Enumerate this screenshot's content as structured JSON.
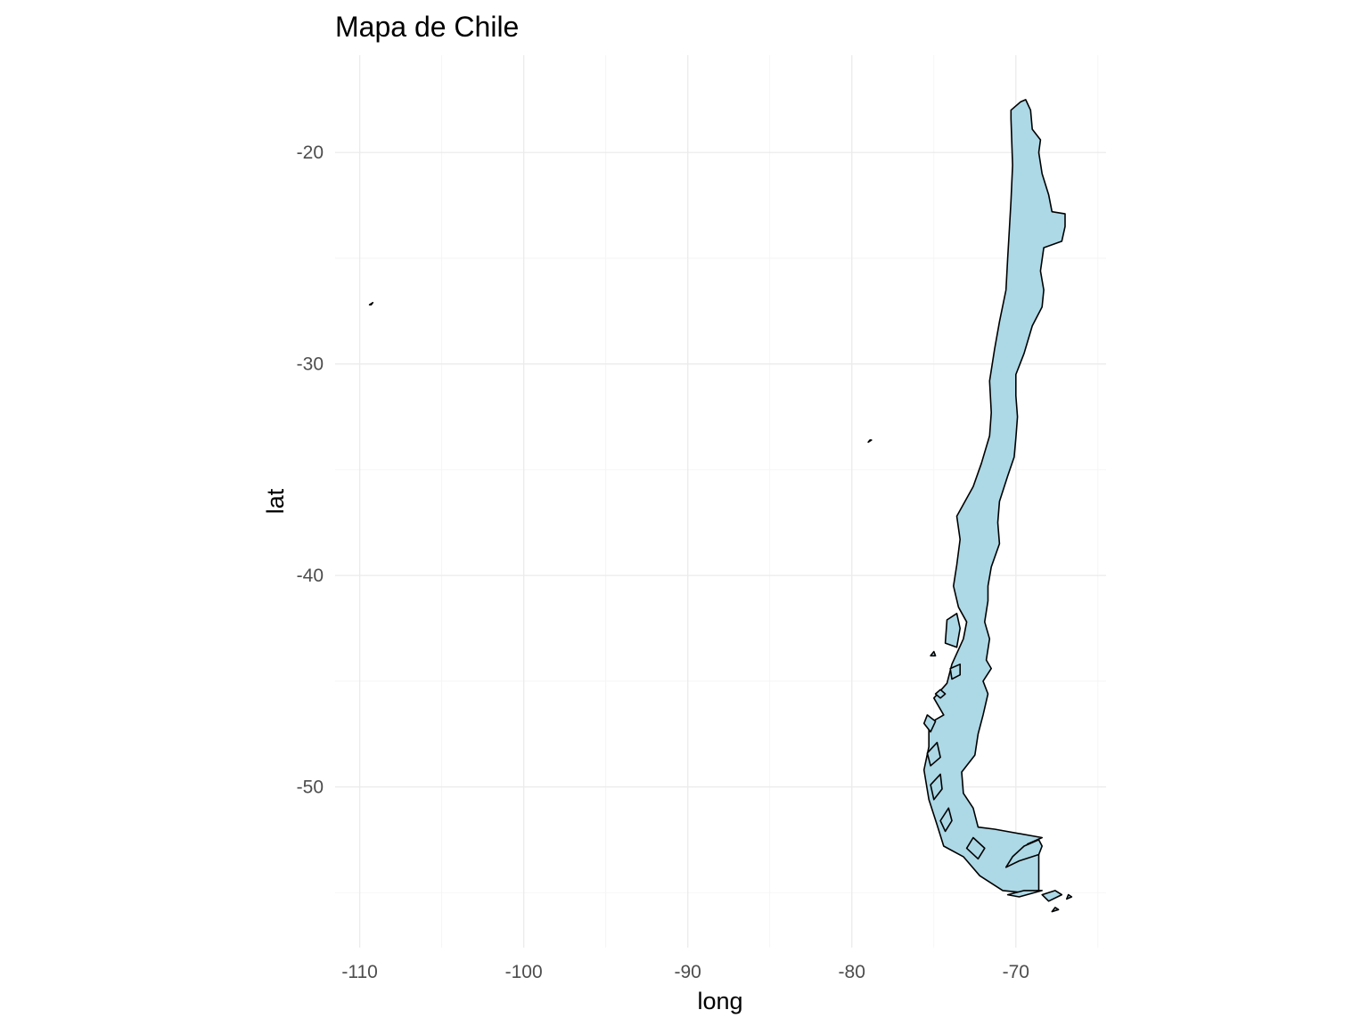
{
  "title": "Mapa de Chile",
  "chart_data": {
    "type": "map",
    "title": "Mapa de Chile",
    "xlabel": "long",
    "ylabel": "lat",
    "xlim": [
      -111.5,
      -64.5
    ],
    "ylim": [
      -57.6,
      -15.4
    ],
    "x_ticks": [
      -110,
      -100,
      -90,
      -80,
      -70
    ],
    "x_tick_labels": [
      "-110",
      "-100",
      "-90",
      "-80",
      "-70"
    ],
    "y_ticks": [
      -20,
      -30,
      -40,
      -50
    ],
    "y_tick_labels": [
      "-20",
      "-30",
      "-40",
      "-50"
    ],
    "x_minor": [
      -105,
      -95,
      -85,
      -75,
      -65
    ],
    "y_minor": [
      -25,
      -35,
      -45,
      -55
    ],
    "grid": true,
    "fill_color": "#add8e6",
    "outline_color": "#000000",
    "regions": [
      {
        "name": "",
        "polygon": [
          [
            -69.4,
            -17.5
          ],
          [
            -69.1,
            -18.0
          ],
          [
            -69.0,
            -18.9
          ],
          [
            -68.5,
            -19.4
          ],
          [
            -68.6,
            -20.0
          ],
          [
            -68.4,
            -21.0
          ],
          [
            -68.0,
            -22.0
          ],
          [
            -67.8,
            -22.8
          ],
          [
            -67.0,
            -22.9
          ],
          [
            -67.0,
            -23.5
          ],
          [
            -67.2,
            -24.2
          ],
          [
            -68.3,
            -24.5
          ],
          [
            -68.5,
            -25.6
          ],
          [
            -68.3,
            -26.5
          ],
          [
            -68.4,
            -27.3
          ],
          [
            -69.0,
            -28.2
          ],
          [
            -69.5,
            -29.5
          ],
          [
            -70.0,
            -30.5
          ],
          [
            -70.0,
            -31.5
          ],
          [
            -69.9,
            -32.5
          ],
          [
            -70.0,
            -33.5
          ],
          [
            -70.1,
            -34.4
          ],
          [
            -70.5,
            -35.3
          ],
          [
            -71.0,
            -36.5
          ],
          [
            -71.1,
            -37.5
          ],
          [
            -71.0,
            -38.5
          ],
          [
            -71.5,
            -39.6
          ],
          [
            -71.7,
            -40.5
          ],
          [
            -71.7,
            -41.2
          ],
          [
            -71.9,
            -42.2
          ],
          [
            -71.6,
            -43.0
          ],
          [
            -71.8,
            -44.0
          ],
          [
            -71.5,
            -44.4
          ],
          [
            -72.0,
            -45.0
          ],
          [
            -71.7,
            -45.6
          ],
          [
            -72.0,
            -46.6
          ],
          [
            -72.3,
            -47.5
          ],
          [
            -72.5,
            -48.5
          ],
          [
            -73.3,
            -49.3
          ],
          [
            -73.2,
            -50.3
          ],
          [
            -72.6,
            -51.0
          ],
          [
            -72.3,
            -51.9
          ],
          [
            -71.3,
            -52.0
          ],
          [
            -68.4,
            -52.4
          ],
          [
            -69.3,
            -52.7
          ],
          [
            -68.6,
            -53.2
          ],
          [
            -68.6,
            -54.9
          ],
          [
            -69.5,
            -55.0
          ],
          [
            -70.8,
            -54.9
          ],
          [
            -72.2,
            -54.2
          ],
          [
            -73.2,
            -53.3
          ],
          [
            -74.4,
            -52.8
          ],
          [
            -74.8,
            -51.8
          ],
          [
            -75.3,
            -50.6
          ],
          [
            -75.6,
            -49.2
          ],
          [
            -75.3,
            -48.1
          ],
          [
            -75.3,
            -47.0
          ],
          [
            -74.4,
            -46.6
          ],
          [
            -75.0,
            -45.8
          ],
          [
            -74.2,
            -45.1
          ],
          [
            -73.9,
            -44.2
          ],
          [
            -73.2,
            -43.0
          ],
          [
            -73.0,
            -42.2
          ],
          [
            -73.5,
            -41.5
          ],
          [
            -73.8,
            -40.5
          ],
          [
            -73.6,
            -39.5
          ],
          [
            -73.4,
            -38.3
          ],
          [
            -73.6,
            -37.2
          ],
          [
            -72.6,
            -35.8
          ],
          [
            -72.1,
            -34.7
          ],
          [
            -71.6,
            -33.4
          ],
          [
            -71.5,
            -32.3
          ],
          [
            -71.6,
            -30.8
          ],
          [
            -71.3,
            -29.3
          ],
          [
            -71.0,
            -28.0
          ],
          [
            -70.6,
            -26.5
          ],
          [
            -70.5,
            -25.0
          ],
          [
            -70.4,
            -23.7
          ],
          [
            -70.3,
            -22.3
          ],
          [
            -70.2,
            -20.6
          ],
          [
            -70.3,
            -18.4
          ],
          [
            -70.3,
            -18.0
          ],
          [
            -69.7,
            -17.6
          ]
        ]
      },
      {
        "name": "",
        "polygon": [
          [
            -68.6,
            -52.5
          ],
          [
            -68.4,
            -52.8
          ],
          [
            -68.6,
            -53.2
          ],
          [
            -69.8,
            -53.5
          ],
          [
            -70.6,
            -53.8
          ],
          [
            -70.2,
            -53.3
          ],
          [
            -69.5,
            -52.8
          ]
        ]
      },
      {
        "name": "",
        "polygon": [
          [
            -68.4,
            -54.9
          ],
          [
            -69.8,
            -55.2
          ],
          [
            -70.5,
            -55.1
          ],
          [
            -69.5,
            -54.9
          ]
        ]
      },
      {
        "name": "",
        "polygon": [
          [
            -67.2,
            -55.1
          ],
          [
            -68.0,
            -55.4
          ],
          [
            -68.4,
            -55.1
          ],
          [
            -67.6,
            -54.9
          ]
        ]
      },
      {
        "name": "",
        "polygon": [
          [
            -66.6,
            -55.2
          ],
          [
            -66.9,
            -55.3
          ],
          [
            -66.8,
            -55.1
          ]
        ]
      },
      {
        "name": "",
        "polygon": [
          [
            -67.4,
            -55.8
          ],
          [
            -67.8,
            -55.9
          ],
          [
            -67.6,
            -55.7
          ]
        ]
      },
      {
        "name": "",
        "polygon": [
          [
            -72.6,
            -52.4
          ],
          [
            -73.0,
            -52.9
          ],
          [
            -72.3,
            -53.4
          ],
          [
            -71.9,
            -52.9
          ]
        ]
      },
      {
        "name": "",
        "polygon": [
          [
            -74.1,
            -51.0
          ],
          [
            -74.6,
            -51.6
          ],
          [
            -74.3,
            -52.1
          ],
          [
            -73.9,
            -51.6
          ]
        ]
      },
      {
        "name": "",
        "polygon": [
          [
            -74.6,
            -49.4
          ],
          [
            -75.2,
            -49.9
          ],
          [
            -75.0,
            -50.6
          ],
          [
            -74.5,
            -50.1
          ]
        ]
      },
      {
        "name": "",
        "polygon": [
          [
            -74.8,
            -47.9
          ],
          [
            -75.4,
            -48.4
          ],
          [
            -75.2,
            -49.0
          ],
          [
            -74.6,
            -48.6
          ]
        ]
      },
      {
        "name": "",
        "polygon": [
          [
            -75.4,
            -46.6
          ],
          [
            -75.6,
            -47.0
          ],
          [
            -75.2,
            -47.4
          ],
          [
            -74.9,
            -46.9
          ]
        ]
      },
      {
        "name": "",
        "polygon": [
          [
            -73.6,
            -41.8
          ],
          [
            -74.2,
            -42.1
          ],
          [
            -74.3,
            -43.2
          ],
          [
            -73.6,
            -43.4
          ],
          [
            -73.4,
            -42.5
          ]
        ]
      },
      {
        "name": "",
        "polygon": [
          [
            -73.4,
            -44.2
          ],
          [
            -74.0,
            -44.4
          ],
          [
            -73.9,
            -44.9
          ],
          [
            -73.4,
            -44.7
          ]
        ]
      },
      {
        "name": "",
        "polygon": [
          [
            -74.6,
            -45.4
          ],
          [
            -74.9,
            -45.6
          ],
          [
            -74.6,
            -45.8
          ],
          [
            -74.3,
            -45.6
          ]
        ]
      },
      {
        "name": "",
        "polygon": [
          [
            -75.0,
            -43.6
          ],
          [
            -75.2,
            -43.8
          ],
          [
            -74.9,
            -43.8
          ]
        ]
      },
      {
        "name": "",
        "polygon": [
          [
            -109.2,
            -27.1
          ],
          [
            -109.4,
            -27.2
          ],
          [
            -109.3,
            -27.2
          ]
        ]
      },
      {
        "name": "",
        "polygon": [
          [
            -78.8,
            -33.6
          ],
          [
            -79.0,
            -33.7
          ],
          [
            -78.9,
            -33.6
          ]
        ]
      }
    ]
  }
}
